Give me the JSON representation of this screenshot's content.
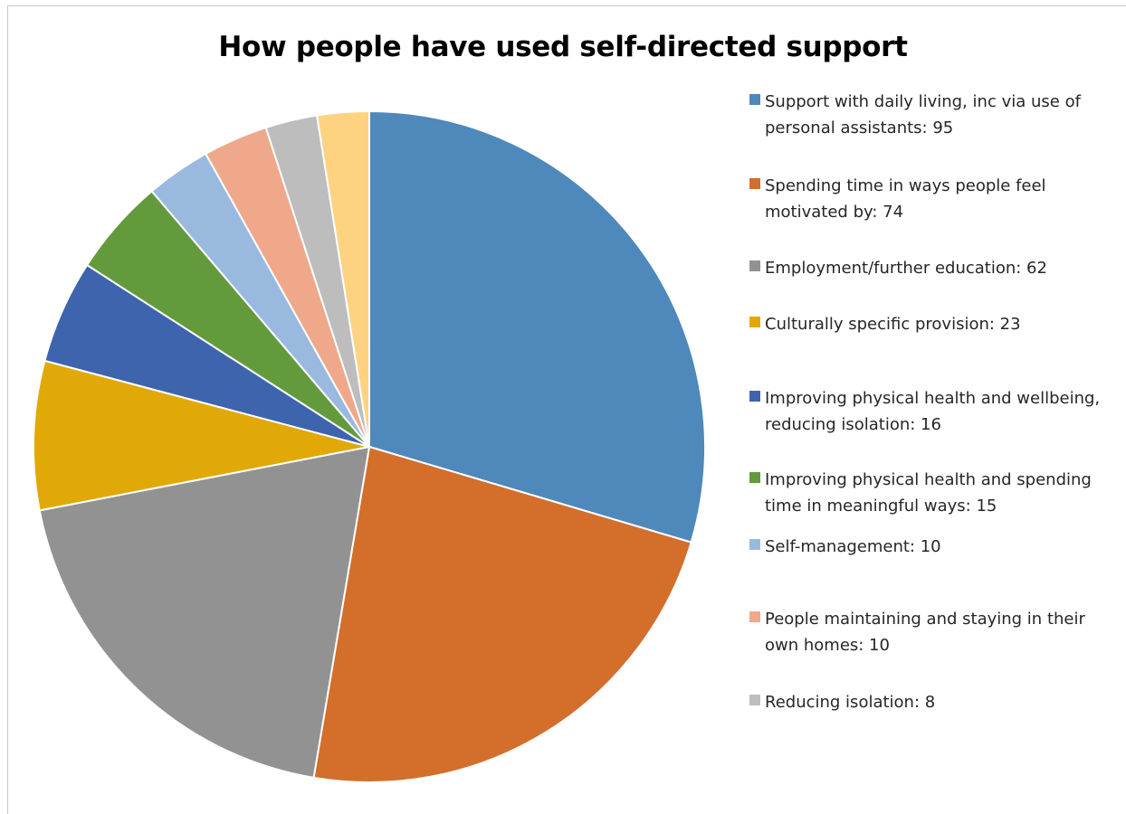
{
  "chart_data": {
    "type": "pie",
    "title": "How people have used self-directed support",
    "legend_position": "right",
    "slices": [
      {
        "label": "Support with daily living, inc via use of personal assistants: 95",
        "category": "Support with daily living, inc via use of personal assistants",
        "value": 95,
        "color": "#4f88bb"
      },
      {
        "label": "Spending time in ways people feel motivated by: 74",
        "category": "Spending time in ways people feel motivated by",
        "value": 74,
        "color": "#d36e2b"
      },
      {
        "label": "Employment/further education: 62",
        "category": "Employment/further education",
        "value": 62,
        "color": "#929292"
      },
      {
        "label": "Culturally specific provision: 23",
        "category": "Culturally specific provision",
        "value": 23,
        "color": "#e1a907"
      },
      {
        "label": "Improving physical health and wellbeing, reducing isolation: 16",
        "category": "Improving physical health and wellbeing, reducing isolation",
        "value": 16,
        "color": "#3d64ad"
      },
      {
        "label": "Improving physical health and spending time in meaningful ways: 15",
        "category": "Improving physical health and spending time in meaningful ways",
        "value": 15,
        "color": "#639a3c"
      },
      {
        "label": "Self-management: 10",
        "category": "Self-management",
        "value": 10,
        "color": "#99b9df"
      },
      {
        "label": "People maintaining and staying in their own homes: 10",
        "category": "People maintaining and staying in their own homes",
        "value": 10,
        "color": "#f0a88a"
      },
      {
        "label": "Reducing isolation: 8",
        "category": "Reducing isolation",
        "value": 8,
        "color": "#bdbdbd"
      },
      {
        "label": "",
        "category": "",
        "value": 8,
        "color": "#fdd382"
      }
    ]
  }
}
